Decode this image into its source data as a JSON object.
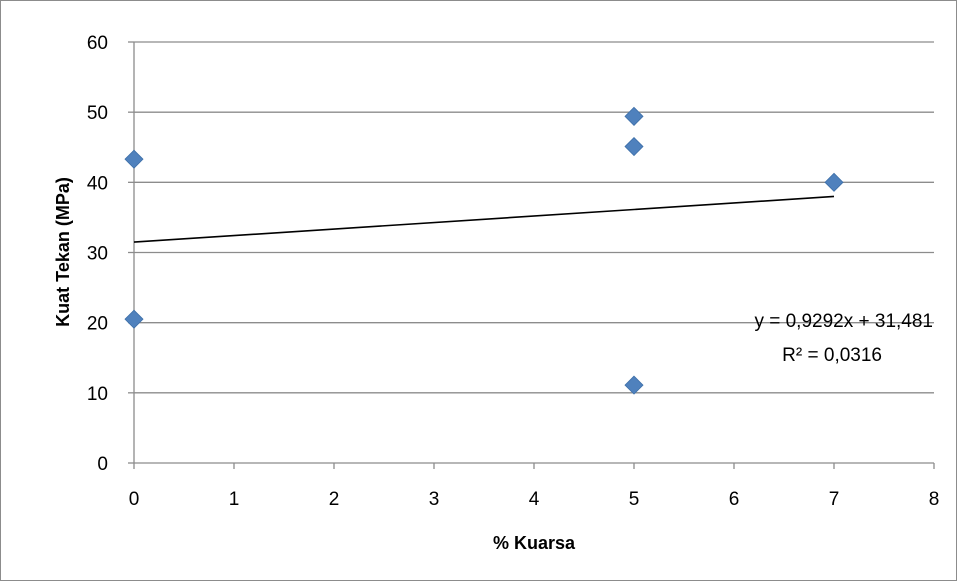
{
  "chart_data": {
    "type": "scatter",
    "xlabel": "% Kuarsa",
    "ylabel": "Kuat Tekan (MPa)",
    "xlim": [
      0,
      8
    ],
    "ylim": [
      0,
      60
    ],
    "xticks": [
      "0",
      "1",
      "2",
      "3",
      "4",
      "5",
      "6",
      "7",
      "8"
    ],
    "yticks": [
      "0",
      "10",
      "20",
      "30",
      "40",
      "50",
      "60"
    ],
    "grid": "horizontal",
    "legend": "none",
    "series": [
      {
        "marker": "diamond",
        "color": "#4f81bd",
        "points": [
          {
            "x": 0,
            "y": 43.3
          },
          {
            "x": 0,
            "y": 20.5
          },
          {
            "x": 5,
            "y": 49.4
          },
          {
            "x": 5,
            "y": 45.1
          },
          {
            "x": 5,
            "y": 11.1
          },
          {
            "x": 7,
            "y": 40.0
          }
        ]
      }
    ],
    "trendline": {
      "type": "linear",
      "slope": 0.9292,
      "intercept": 31.481,
      "x_range": [
        0,
        7
      ],
      "color": "#000000",
      "equation": "y = 0,9292x + 31,481",
      "r_squared": "R² = 0,0316"
    }
  }
}
